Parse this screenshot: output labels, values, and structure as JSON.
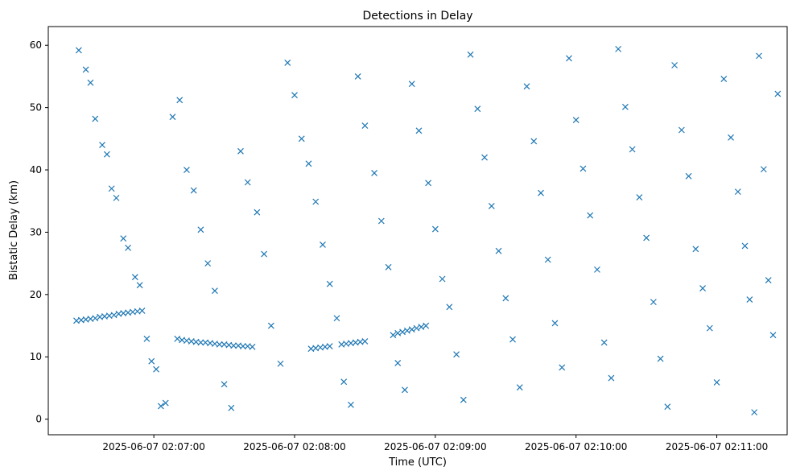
{
  "chart_data": {
    "type": "scatter",
    "title": "Detections in Delay",
    "xlabel": "Time (UTC)",
    "ylabel": "Bistatic Delay (km)",
    "marker": "x",
    "color": "#1f77b4",
    "grid": false,
    "xlim": [
      "2025-06-07 02:06:15",
      "2025-06-07 02:11:30"
    ],
    "ylim": [
      -2.5,
      63
    ],
    "xticks": [
      "2025-06-07 02:07:00",
      "2025-06-07 02:08:00",
      "2025-06-07 02:09:00",
      "2025-06-07 02:10:00",
      "2025-06-07 02:11:00"
    ],
    "yticks": [
      0,
      10,
      20,
      30,
      40,
      50,
      60
    ],
    "track_points": [
      [
        "2025-06-07 02:06:27",
        15.8
      ],
      [
        "2025-06-07 02:06:29",
        15.9
      ],
      [
        "2025-06-07 02:06:31",
        16.0
      ],
      [
        "2025-06-07 02:06:33",
        16.1
      ],
      [
        "2025-06-07 02:06:35",
        16.2
      ],
      [
        "2025-06-07 02:06:37",
        16.4
      ],
      [
        "2025-06-07 02:06:39",
        16.5
      ],
      [
        "2025-06-07 02:06:41",
        16.6
      ],
      [
        "2025-06-07 02:06:43",
        16.7
      ],
      [
        "2025-06-07 02:06:45",
        16.9
      ],
      [
        "2025-06-07 02:06:47",
        17.0
      ],
      [
        "2025-06-07 02:06:49",
        17.1
      ],
      [
        "2025-06-07 02:06:51",
        17.2
      ],
      [
        "2025-06-07 02:06:53",
        17.3
      ],
      [
        "2025-06-07 02:06:55",
        17.4
      ],
      [
        "2025-06-07 02:07:10",
        12.9
      ],
      [
        "2025-06-07 02:07:12",
        12.7
      ],
      [
        "2025-06-07 02:07:14",
        12.6
      ],
      [
        "2025-06-07 02:07:16",
        12.5
      ],
      [
        "2025-06-07 02:07:18",
        12.4
      ],
      [
        "2025-06-07 02:07:20",
        12.3
      ],
      [
        "2025-06-07 02:07:22",
        12.3
      ],
      [
        "2025-06-07 02:07:24",
        12.2
      ],
      [
        "2025-06-07 02:07:26",
        12.1
      ],
      [
        "2025-06-07 02:07:28",
        12.0
      ],
      [
        "2025-06-07 02:07:30",
        12.0
      ],
      [
        "2025-06-07 02:07:32",
        11.9
      ],
      [
        "2025-06-07 02:07:34",
        11.8
      ],
      [
        "2025-06-07 02:07:36",
        11.8
      ],
      [
        "2025-06-07 02:07:38",
        11.7
      ],
      [
        "2025-06-07 02:07:40",
        11.7
      ],
      [
        "2025-06-07 02:07:42",
        11.6
      ],
      [
        "2025-06-07 02:08:07",
        11.3
      ],
      [
        "2025-06-07 02:08:09",
        11.4
      ],
      [
        "2025-06-07 02:08:11",
        11.5
      ],
      [
        "2025-06-07 02:08:13",
        11.6
      ],
      [
        "2025-06-07 02:08:15",
        11.7
      ],
      [
        "2025-06-07 02:08:20",
        12.0
      ],
      [
        "2025-06-07 02:08:22",
        12.1
      ],
      [
        "2025-06-07 02:08:24",
        12.2
      ],
      [
        "2025-06-07 02:08:26",
        12.3
      ],
      [
        "2025-06-07 02:08:28",
        12.4
      ],
      [
        "2025-06-07 02:08:30",
        12.5
      ],
      [
        "2025-06-07 02:08:42",
        13.5
      ],
      [
        "2025-06-07 02:08:44",
        13.8
      ],
      [
        "2025-06-07 02:08:46",
        14.0
      ],
      [
        "2025-06-07 02:08:48",
        14.2
      ],
      [
        "2025-06-07 02:08:50",
        14.4
      ],
      [
        "2025-06-07 02:08:52",
        14.6
      ],
      [
        "2025-06-07 02:08:54",
        14.8
      ],
      [
        "2025-06-07 02:08:56",
        15.0
      ]
    ],
    "scattered_points": [
      [
        "2025-06-07 02:06:28",
        59.2
      ],
      [
        "2025-06-07 02:06:31",
        56.1
      ],
      [
        "2025-06-07 02:06:33",
        54.0
      ],
      [
        "2025-06-07 02:06:35",
        48.2
      ],
      [
        "2025-06-07 02:06:38",
        44.0
      ],
      [
        "2025-06-07 02:06:40",
        42.5
      ],
      [
        "2025-06-07 02:06:42",
        37.0
      ],
      [
        "2025-06-07 02:06:44",
        35.5
      ],
      [
        "2025-06-07 02:06:47",
        29.0
      ],
      [
        "2025-06-07 02:06:49",
        27.5
      ],
      [
        "2025-06-07 02:06:52",
        22.8
      ],
      [
        "2025-06-07 02:06:54",
        21.5
      ],
      [
        "2025-06-07 02:06:57",
        12.9
      ],
      [
        "2025-06-07 02:06:59",
        9.3
      ],
      [
        "2025-06-07 02:07:01",
        8.0
      ],
      [
        "2025-06-07 02:07:03",
        2.1
      ],
      [
        "2025-06-07 02:07:05",
        2.6
      ],
      [
        "2025-06-07 02:07:08",
        48.5
      ],
      [
        "2025-06-07 02:07:11",
        51.2
      ],
      [
        "2025-06-07 02:07:14",
        40.0
      ],
      [
        "2025-06-07 02:07:17",
        36.7
      ],
      [
        "2025-06-07 02:07:20",
        30.4
      ],
      [
        "2025-06-07 02:07:23",
        25.0
      ],
      [
        "2025-06-07 02:07:26",
        20.6
      ],
      [
        "2025-06-07 02:07:30",
        5.6
      ],
      [
        "2025-06-07 02:07:33",
        1.8
      ],
      [
        "2025-06-07 02:07:37",
        43.0
      ],
      [
        "2025-06-07 02:07:40",
        38.0
      ],
      [
        "2025-06-07 02:07:44",
        33.2
      ],
      [
        "2025-06-07 02:07:47",
        26.5
      ],
      [
        "2025-06-07 02:07:50",
        15.0
      ],
      [
        "2025-06-07 02:07:54",
        8.9
      ],
      [
        "2025-06-07 02:07:57",
        57.2
      ],
      [
        "2025-06-07 02:08:00",
        52.0
      ],
      [
        "2025-06-07 02:08:03",
        45.0
      ],
      [
        "2025-06-07 02:08:06",
        41.0
      ],
      [
        "2025-06-07 02:08:09",
        34.9
      ],
      [
        "2025-06-07 02:08:12",
        28.0
      ],
      [
        "2025-06-07 02:08:15",
        21.7
      ],
      [
        "2025-06-07 02:08:18",
        16.2
      ],
      [
        "2025-06-07 02:08:21",
        6.0
      ],
      [
        "2025-06-07 02:08:24",
        2.3
      ],
      [
        "2025-06-07 02:08:27",
        55.0
      ],
      [
        "2025-06-07 02:08:30",
        47.1
      ],
      [
        "2025-06-07 02:08:34",
        39.5
      ],
      [
        "2025-06-07 02:08:37",
        31.8
      ],
      [
        "2025-06-07 02:08:40",
        24.4
      ],
      [
        "2025-06-07 02:08:44",
        9.0
      ],
      [
        "2025-06-07 02:08:47",
        4.7
      ],
      [
        "2025-06-07 02:08:50",
        53.8
      ],
      [
        "2025-06-07 02:08:53",
        46.3
      ],
      [
        "2025-06-07 02:08:57",
        37.9
      ],
      [
        "2025-06-07 02:09:00",
        30.5
      ],
      [
        "2025-06-07 02:09:03",
        22.5
      ],
      [
        "2025-06-07 02:09:06",
        18.0
      ],
      [
        "2025-06-07 02:09:09",
        10.4
      ],
      [
        "2025-06-07 02:09:12",
        3.1
      ],
      [
        "2025-06-07 02:09:15",
        58.5
      ],
      [
        "2025-06-07 02:09:18",
        49.8
      ],
      [
        "2025-06-07 02:09:21",
        42.0
      ],
      [
        "2025-06-07 02:09:24",
        34.2
      ],
      [
        "2025-06-07 02:09:27",
        27.0
      ],
      [
        "2025-06-07 02:09:30",
        19.4
      ],
      [
        "2025-06-07 02:09:33",
        12.8
      ],
      [
        "2025-06-07 02:09:36",
        5.1
      ],
      [
        "2025-06-07 02:09:39",
        53.4
      ],
      [
        "2025-06-07 02:09:42",
        44.6
      ],
      [
        "2025-06-07 02:09:45",
        36.3
      ],
      [
        "2025-06-07 02:09:48",
        25.6
      ],
      [
        "2025-06-07 02:09:51",
        15.4
      ],
      [
        "2025-06-07 02:09:54",
        8.3
      ],
      [
        "2025-06-07 02:09:57",
        57.9
      ],
      [
        "2025-06-07 02:10:00",
        48.0
      ],
      [
        "2025-06-07 02:10:03",
        40.2
      ],
      [
        "2025-06-07 02:10:06",
        32.7
      ],
      [
        "2025-06-07 02:10:09",
        24.0
      ],
      [
        "2025-06-07 02:10:12",
        12.3
      ],
      [
        "2025-06-07 02:10:15",
        6.6
      ],
      [
        "2025-06-07 02:10:18",
        59.4
      ],
      [
        "2025-06-07 02:10:21",
        50.1
      ],
      [
        "2025-06-07 02:10:24",
        43.3
      ],
      [
        "2025-06-07 02:10:27",
        35.6
      ],
      [
        "2025-06-07 02:10:30",
        29.1
      ],
      [
        "2025-06-07 02:10:33",
        18.8
      ],
      [
        "2025-06-07 02:10:36",
        9.7
      ],
      [
        "2025-06-07 02:10:39",
        2.0
      ],
      [
        "2025-06-07 02:10:42",
        56.8
      ],
      [
        "2025-06-07 02:10:45",
        46.4
      ],
      [
        "2025-06-07 02:10:48",
        39.0
      ],
      [
        "2025-06-07 02:10:51",
        27.3
      ],
      [
        "2025-06-07 02:10:54",
        21.0
      ],
      [
        "2025-06-07 02:10:57",
        14.6
      ],
      [
        "2025-06-07 02:11:00",
        5.9
      ],
      [
        "2025-06-07 02:11:03",
        54.6
      ],
      [
        "2025-06-07 02:11:06",
        45.2
      ],
      [
        "2025-06-07 02:11:09",
        36.5
      ],
      [
        "2025-06-07 02:11:12",
        27.8
      ],
      [
        "2025-06-07 02:11:14",
        19.2
      ],
      [
        "2025-06-07 02:11:16",
        1.1
      ],
      [
        "2025-06-07 02:11:18",
        58.3
      ],
      [
        "2025-06-07 02:11:20",
        40.1
      ],
      [
        "2025-06-07 02:11:22",
        22.3
      ],
      [
        "2025-06-07 02:11:24",
        13.5
      ],
      [
        "2025-06-07 02:11:26",
        52.2
      ]
    ]
  }
}
